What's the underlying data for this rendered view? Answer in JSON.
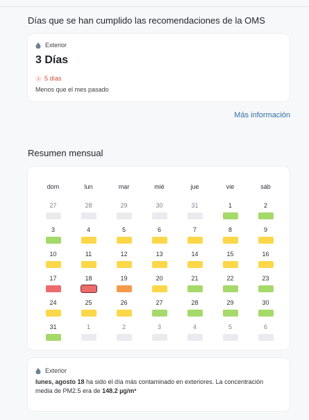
{
  "who_section": {
    "title": "Días que se han cumplido las recomendaciones de la OMS",
    "card": {
      "location": "Exterior",
      "value": "3 Días",
      "delta": "5 días",
      "comparison": "Menos que el mes pasado"
    },
    "more_link": "Más información"
  },
  "monthly": {
    "title": "Resumen mensual",
    "weekdays": [
      "dom",
      "lun",
      "mar",
      "mié",
      "jue",
      "vie",
      "sáb"
    ],
    "legend_colors": {
      "good": "#a5d96a",
      "moderate": "#fcd74a",
      "unhealthy_sensitive": "#f59a4a",
      "unhealthy": "#ee6b6b",
      "none": "#e9ebee"
    },
    "weeks": [
      [
        {
          "day": "27",
          "other_month": true,
          "level": "none"
        },
        {
          "day": "28",
          "other_month": true,
          "level": "none"
        },
        {
          "day": "29",
          "other_month": true,
          "level": "none"
        },
        {
          "day": "30",
          "other_month": true,
          "level": "none"
        },
        {
          "day": "31",
          "other_month": true,
          "level": "none"
        },
        {
          "day": "1",
          "other_month": false,
          "level": "good"
        },
        {
          "day": "2",
          "other_month": false,
          "level": "good"
        }
      ],
      [
        {
          "day": "3",
          "other_month": false,
          "level": "good"
        },
        {
          "day": "4",
          "other_month": false,
          "level": "moderate"
        },
        {
          "day": "5",
          "other_month": false,
          "level": "moderate"
        },
        {
          "day": "6",
          "other_month": false,
          "level": "moderate"
        },
        {
          "day": "7",
          "other_month": false,
          "level": "moderate"
        },
        {
          "day": "8",
          "other_month": false,
          "level": "moderate"
        },
        {
          "day": "9",
          "other_month": false,
          "level": "moderate"
        }
      ],
      [
        {
          "day": "10",
          "other_month": false,
          "level": "moderate"
        },
        {
          "day": "11",
          "other_month": false,
          "level": "moderate"
        },
        {
          "day": "12",
          "other_month": false,
          "level": "moderate"
        },
        {
          "day": "13",
          "other_month": false,
          "level": "moderate"
        },
        {
          "day": "14",
          "other_month": false,
          "level": "moderate"
        },
        {
          "day": "15",
          "other_month": false,
          "level": "moderate"
        },
        {
          "day": "16",
          "other_month": false,
          "level": "moderate"
        }
      ],
      [
        {
          "day": "17",
          "other_month": false,
          "level": "unhealthy"
        },
        {
          "day": "18",
          "other_month": false,
          "level": "unhealthy",
          "highlight": true
        },
        {
          "day": "19",
          "other_month": false,
          "level": "unhealthy_sensitive"
        },
        {
          "day": "20",
          "other_month": false,
          "level": "moderate"
        },
        {
          "day": "21",
          "other_month": false,
          "level": "good"
        },
        {
          "day": "22",
          "other_month": false,
          "level": "good"
        },
        {
          "day": "23",
          "other_month": false,
          "level": "good"
        }
      ],
      [
        {
          "day": "24",
          "other_month": false,
          "level": "moderate"
        },
        {
          "day": "25",
          "other_month": false,
          "level": "moderate"
        },
        {
          "day": "26",
          "other_month": false,
          "level": "moderate"
        },
        {
          "day": "27",
          "other_month": false,
          "level": "good"
        },
        {
          "day": "28",
          "other_month": false,
          "level": "good"
        },
        {
          "day": "29",
          "other_month": false,
          "level": "good"
        },
        {
          "day": "30",
          "other_month": false,
          "level": "good"
        }
      ],
      [
        {
          "day": "31",
          "other_month": false,
          "level": "good"
        },
        {
          "day": "1",
          "other_month": true,
          "level": "none"
        },
        {
          "day": "2",
          "other_month": true,
          "level": "none"
        },
        {
          "day": "3",
          "other_month": true,
          "level": "none"
        },
        {
          "day": "4",
          "other_month": true,
          "level": "none"
        },
        {
          "day": "5",
          "other_month": true,
          "level": "none"
        },
        {
          "day": "6",
          "other_month": true,
          "level": "none"
        }
      ]
    ]
  },
  "note": {
    "location": "Exterior",
    "date_bold": "lunes, agosto 18",
    "text_1": " ha sido el día más contaminado en exteriores. La concentración media de PM2.5 era de ",
    "value_bold": "148.2 µg/m³"
  }
}
